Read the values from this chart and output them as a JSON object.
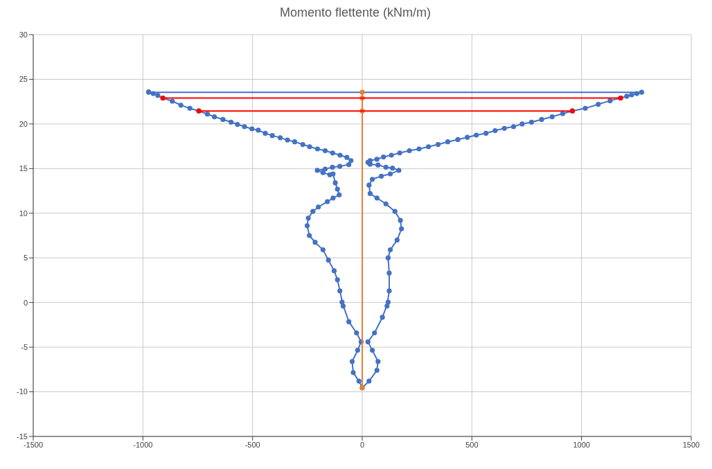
{
  "chart_data": {
    "type": "line",
    "title": "Momento flettente (kNm/m)",
    "xlim": [
      -1500,
      1500
    ],
    "xticks": [
      -1500,
      -1000,
      -500,
      0,
      500,
      1000,
      1500
    ],
    "ylim": [
      -15,
      30
    ],
    "yticks": [
      -15,
      -10,
      -5,
      0,
      5,
      10,
      15,
      20,
      25,
      30
    ],
    "grid": true,
    "legend": false,
    "marker": "circle",
    "line_style": "solid",
    "series": [
      {
        "color": "#4472c4",
        "x": [
          -974,
          -953,
          -932,
          -909,
          -866,
          -827,
          -786,
          -745,
          -706,
          -674,
          -635,
          -598,
          -569,
          -537,
          -503,
          -474,
          -442,
          -410,
          -374,
          -341,
          -308,
          -271,
          -240,
          -204,
          -169,
          -135,
          -101,
          -70,
          -51,
          -61,
          -102,
          -136,
          -169,
          -205,
          -179,
          -148,
          -133,
          -123,
          -113,
          -105,
          -133,
          -159,
          -200,
          -225,
          -246,
          -251,
          -241,
          -215,
          -179,
          -154,
          -128,
          -113,
          -102,
          -87,
          -92,
          -61,
          -26,
          -5,
          -21,
          -46,
          -41,
          -15,
          0,
          31,
          67,
          72,
          46,
          26,
          56,
          92,
          118,
          113,
          123,
          123,
          118,
          128,
          159,
          179,
          174,
          149,
          108,
          67,
          36,
          31,
          46,
          87,
          128,
          167,
          138,
          108,
          72,
          36,
          26,
          36,
          67,
          97,
          133,
          171,
          215,
          259,
          302,
          346,
          390,
          436,
          479,
          520,
          564,
          606,
          648,
          690,
          729,
          772,
          818,
          866,
          914,
          958,
          1017,
          1076,
          1130,
          1178,
          1206,
          1228,
          1252,
          1274,
          -974
        ],
        "values": [
          23.6,
          23.4,
          23.2,
          22.9,
          22.55,
          22.1,
          21.75,
          21.45,
          21.1,
          20.8,
          20.5,
          20.2,
          19.95,
          19.7,
          19.45,
          19.3,
          18.95,
          18.7,
          18.45,
          18.2,
          18.0,
          17.7,
          17.45,
          17.2,
          17.0,
          16.75,
          16.5,
          16.25,
          15.9,
          15.45,
          15.25,
          15.15,
          14.95,
          14.8,
          14.55,
          14.3,
          14.4,
          13.4,
          12.7,
          12.05,
          11.7,
          11.3,
          10.7,
          10.2,
          9.45,
          8.6,
          7.5,
          6.75,
          5.9,
          4.75,
          3.55,
          2.55,
          1.3,
          -0.4,
          0.05,
          -2.15,
          -3.4,
          -4.4,
          -5.35,
          -6.6,
          -7.85,
          -8.8,
          -9.55,
          -8.8,
          -7.6,
          -6.6,
          -5.35,
          -4.4,
          -3.4,
          -1.65,
          0.05,
          -0.4,
          1.3,
          3.3,
          5.0,
          5.9,
          7.0,
          8.25,
          9.2,
          10.2,
          11.05,
          11.7,
          12.2,
          13.15,
          13.8,
          14.15,
          14.4,
          14.8,
          15.05,
          15.15,
          15.4,
          15.5,
          15.7,
          15.9,
          16.05,
          16.3,
          16.5,
          16.75,
          17.0,
          17.2,
          17.45,
          17.7,
          18.0,
          18.25,
          18.5,
          18.75,
          18.95,
          19.25,
          19.5,
          19.7,
          20.0,
          20.2,
          20.5,
          20.8,
          21.15,
          21.45,
          21.75,
          22.2,
          22.6,
          22.9,
          23.1,
          23.25,
          23.4,
          23.55,
          23.55
        ]
      },
      {
        "color": "#ed7d31",
        "x": [
          0,
          0,
          0,
          0
        ],
        "values": [
          23.55,
          22.9,
          21.45,
          -9.55
        ]
      },
      {
        "color": "#ff0000",
        "x": [
          -909,
          1178
        ],
        "values": [
          22.9,
          22.9
        ]
      },
      {
        "color": "#ff0000",
        "x": [
          -745,
          958
        ],
        "values": [
          21.45,
          21.45
        ]
      }
    ]
  }
}
